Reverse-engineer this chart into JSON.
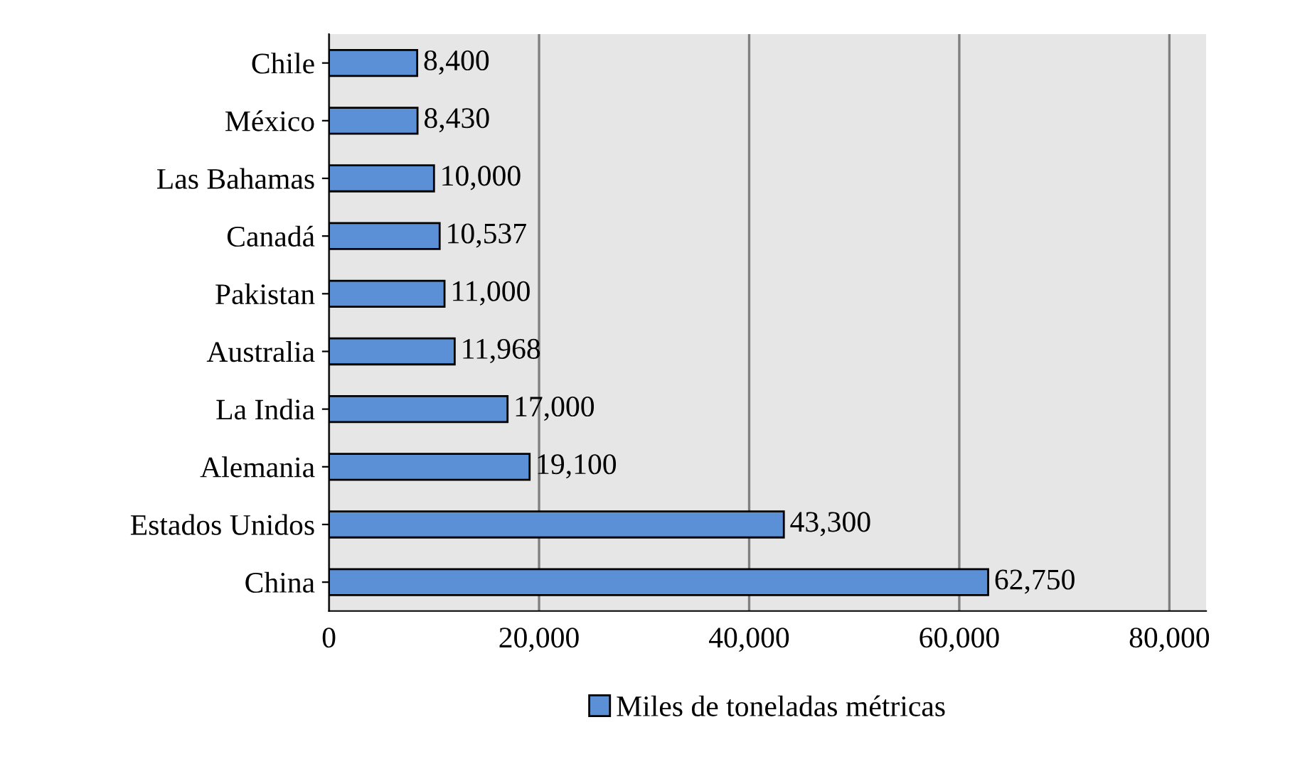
{
  "chart_data": {
    "type": "bar",
    "orientation": "horizontal",
    "categories": [
      "Chile",
      "México",
      "Las Bahamas",
      "Canadá",
      "Pakistan",
      "Australia",
      "La India",
      "Alemania",
      "Estados Unidos",
      "China"
    ],
    "series": [
      {
        "name": "Miles de toneladas métricas",
        "color": "#5b8fd6",
        "values": [
          8400,
          8430,
          10000,
          10537,
          11000,
          11968,
          17000,
          19100,
          43300,
          62750
        ],
        "value_labels": [
          "8,400",
          "8,430",
          "10,000",
          "10,537",
          "11,000",
          "11,968",
          "17,000",
          "19,100",
          "43,300",
          "62,750"
        ]
      }
    ],
    "xlim": [
      0,
      83500
    ],
    "xticks": [
      {
        "value": 0,
        "label": "0"
      },
      {
        "value": 20000,
        "label": "20,000"
      },
      {
        "value": 40000,
        "label": "40,000"
      },
      {
        "value": 60000,
        "label": "60,000"
      },
      {
        "value": 80000,
        "label": "80,000"
      }
    ],
    "grid": "x",
    "legend": "bottom"
  }
}
